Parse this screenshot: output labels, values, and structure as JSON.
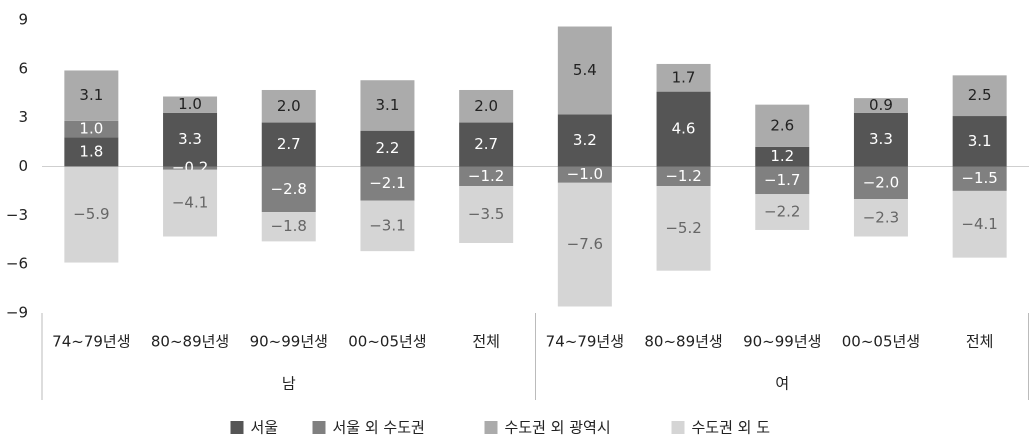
{
  "chart_data": {
    "type": "stacked_bar",
    "categories": [
      "74~79년생",
      "80~89년생",
      "90~99년생",
      "00~05년생",
      "전체",
      "74~79년생",
      "80~89년생",
      "90~99년생",
      "00~05년생",
      "전체"
    ],
    "group_labels": [
      "남",
      "여"
    ],
    "series": [
      {
        "name": "서울",
        "color": "#555555",
        "values": [
          1.8,
          3.3,
          2.7,
          2.2,
          2.7,
          3.2,
          4.6,
          1.2,
          3.3,
          3.1
        ],
        "value_labels": [
          "1.8",
          "3.3",
          "2.7",
          "2.2",
          "2.7",
          "3.2",
          "4.6",
          "1.2",
          "3.3",
          "3.1"
        ]
      },
      {
        "name": "서울 외 수도권",
        "color": "#808080",
        "values": [
          1.0,
          -0.2,
          -2.8,
          -2.1,
          -1.2,
          -1.0,
          -1.2,
          -1.7,
          -2.0,
          -1.5
        ],
        "value_labels": [
          "1.0",
          "−0.2",
          "−2.8",
          "−2.1",
          "−1.2",
          "−1.0",
          "−1.2",
          "−1.7",
          "−2.0",
          "−1.5"
        ]
      },
      {
        "name": "수도권 외 광역시",
        "color": "#ababab",
        "values": [
          3.1,
          1.0,
          2.0,
          3.1,
          2.0,
          5.4,
          1.7,
          2.6,
          0.9,
          2.5
        ],
        "value_labels": [
          "3.1",
          "1.0",
          "2.0",
          "3.1",
          "2.0",
          "5.4",
          "1.7",
          "2.6",
          "0.9",
          "2.5"
        ]
      },
      {
        "name": "수도권 외 도",
        "color": "#d5d5d5",
        "values": [
          -5.9,
          -4.1,
          -1.8,
          -3.1,
          -3.5,
          -7.6,
          -5.2,
          -2.2,
          -2.3,
          -4.1
        ],
        "value_labels": [
          "−5.9",
          "−4.1",
          "−1.8",
          "−3.1",
          "−3.5",
          "−7.6",
          "−5.2",
          "−2.2",
          "−2.3",
          "−4.1"
        ]
      }
    ],
    "ylim": [
      -9,
      9
    ],
    "yticks": [
      {
        "value": -9,
        "label": "−9"
      },
      {
        "value": -6,
        "label": "−6"
      },
      {
        "value": -3,
        "label": "−3"
      },
      0,
      3,
      6,
      9
    ],
    "legend": "bottom"
  }
}
